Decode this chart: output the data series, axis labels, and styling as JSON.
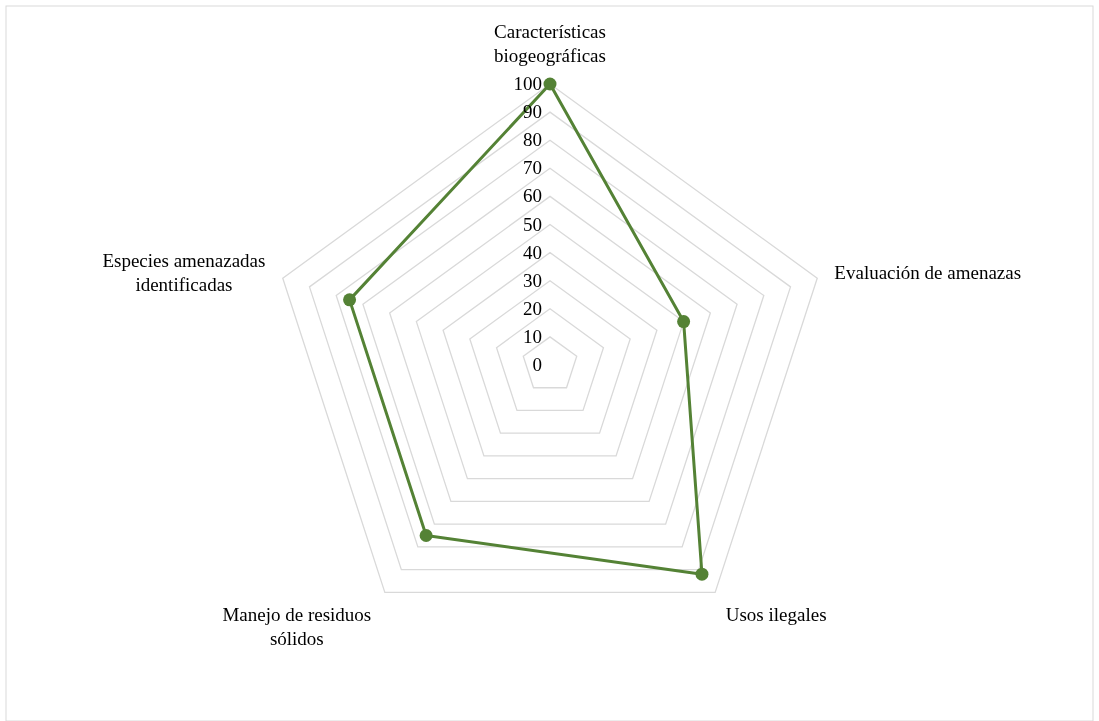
{
  "chart_data": {
    "type": "radar",
    "categories": [
      "Características biogeográficas",
      "Evaluación de amenazas",
      "Usos ilegales",
      "Manejo de residuos sólidos",
      "Especies amenazadas identificadas"
    ],
    "series": [
      {
        "color": "#548235",
        "values": [
          100,
          50,
          92,
          75,
          75
        ]
      }
    ],
    "ylim": [
      0,
      100
    ],
    "yticks": [
      0,
      10,
      20,
      30,
      40,
      50,
      60,
      70,
      80,
      90,
      100
    ],
    "grid": true,
    "marker": "circle"
  }
}
